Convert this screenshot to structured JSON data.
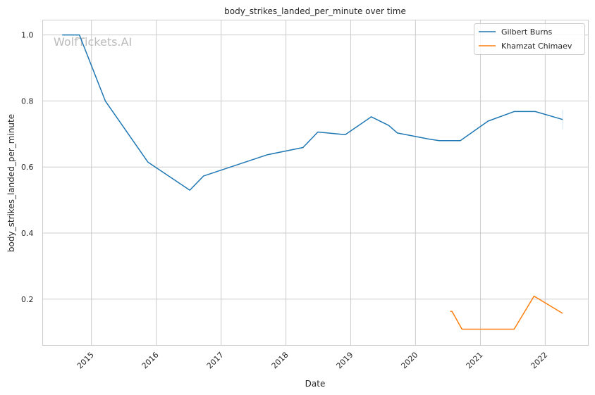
{
  "chart_data": {
    "type": "line",
    "title": "body_strikes_landed_per_minute over time",
    "xlabel": "Date",
    "ylabel": "body_strikes_landed_per_minute",
    "watermark": "WolfTickets.AI",
    "xlim": [
      "2014-04-01",
      "2022-09-01"
    ],
    "ylim": [
      0.06,
      1.045
    ],
    "x_ticks": [
      {
        "date": "2015-01-01",
        "label": "2015"
      },
      {
        "date": "2016-01-01",
        "label": "2016"
      },
      {
        "date": "2017-01-01",
        "label": "2017"
      },
      {
        "date": "2018-01-01",
        "label": "2018"
      },
      {
        "date": "2019-01-01",
        "label": "2019"
      },
      {
        "date": "2020-01-01",
        "label": "2020"
      },
      {
        "date": "2021-01-01",
        "label": "2021"
      },
      {
        "date": "2022-01-01",
        "label": "2022"
      }
    ],
    "y_ticks": [
      {
        "value": 0.2,
        "label": "0.2"
      },
      {
        "value": 0.4,
        "label": "0.4"
      },
      {
        "value": 0.6,
        "label": "0.6"
      },
      {
        "value": 0.8,
        "label": "0.8"
      },
      {
        "value": 1.0,
        "label": "1.0"
      }
    ],
    "grid": true,
    "legend_position": "top-right",
    "series": [
      {
        "name": "Gilbert Burns",
        "color": "#1f77b4",
        "points": [
          {
            "x": "2014-07-20",
            "y": 1.0
          },
          {
            "x": "2014-10-25",
            "y": 1.0
          },
          {
            "x": "2015-03-20",
            "y": 0.8
          },
          {
            "x": "2015-11-15",
            "y": 0.615
          },
          {
            "x": "2016-07-08",
            "y": 0.53
          },
          {
            "x": "2016-09-24",
            "y": 0.573
          },
          {
            "x": "2017-09-16",
            "y": 0.637
          },
          {
            "x": "2018-04-07",
            "y": 0.659
          },
          {
            "x": "2018-06-30",
            "y": 0.706
          },
          {
            "x": "2018-12-01",
            "y": 0.698
          },
          {
            "x": "2019-04-27",
            "y": 0.752
          },
          {
            "x": "2019-08-03",
            "y": 0.726
          },
          {
            "x": "2019-09-21",
            "y": 0.703
          },
          {
            "x": "2020-03-14",
            "y": 0.685
          },
          {
            "x": "2020-05-13",
            "y": 0.68
          },
          {
            "x": "2020-09-10",
            "y": 0.68
          },
          {
            "x": "2021-02-13",
            "y": 0.739
          },
          {
            "x": "2021-07-10",
            "y": 0.768
          },
          {
            "x": "2021-11-06",
            "y": 0.768
          },
          {
            "x": "2022-04-09",
            "y": 0.744
          }
        ]
      },
      {
        "name": "Khamzat Chimaev",
        "color": "#ff7f0e",
        "points": [
          {
            "x": "2020-07-15",
            "y": 0.163
          },
          {
            "x": "2020-07-25",
            "y": 0.163
          },
          {
            "x": "2020-09-19",
            "y": 0.109
          },
          {
            "x": "2021-07-10",
            "y": 0.109
          },
          {
            "x": "2021-10-30",
            "y": 0.209
          },
          {
            "x": "2022-04-09",
            "y": 0.157
          }
        ]
      }
    ]
  }
}
